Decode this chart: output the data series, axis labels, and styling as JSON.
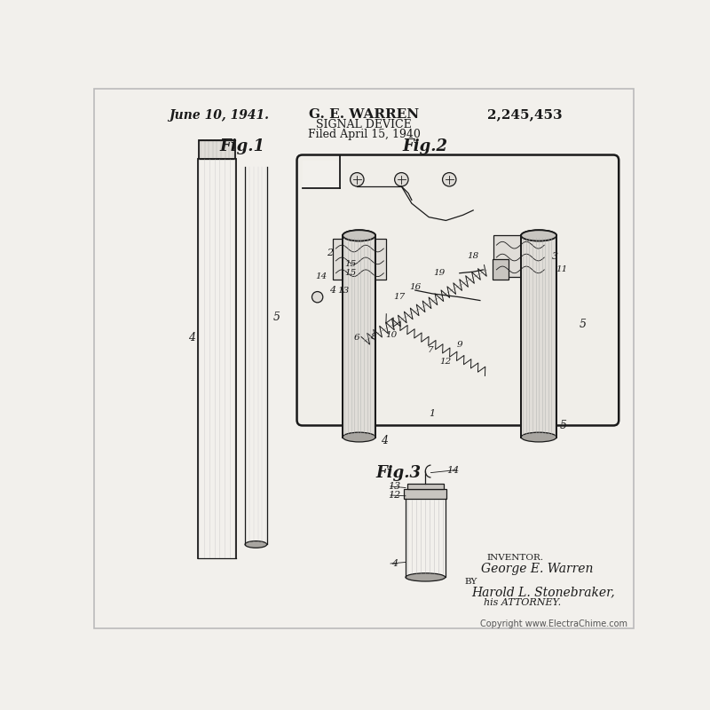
{
  "bg_color": "#f2f0ec",
  "line_color": "#1a1a1a",
  "title_date": "June 10, 1941.",
  "title_inventor": "G. E. WARREN",
  "title_patent": "2,245,453",
  "title_device": "SIGNAL DEVICE",
  "title_filed": "Filed April 15, 1940",
  "fig1_label": "Fig.1",
  "fig2_label": "Fig.2",
  "fig3_label": "Fig.3",
  "inventor_text": "INVENTOR.",
  "inventor_name": "George E. Warren",
  "attorney_by": "BY",
  "attorney_name": "Harold L. Stonebraker,",
  "attorney_label": "his ATTORNEY.",
  "copyright": "Copyright www.ElectraChime.com",
  "font_color": "#1a1a1a"
}
